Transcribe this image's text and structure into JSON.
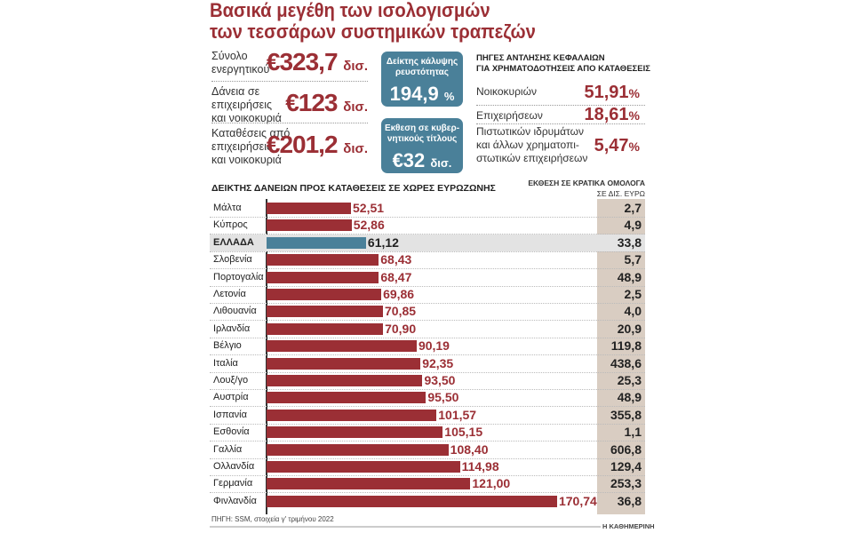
{
  "title_line1": "Βασικά μεγέθη των ισολογισμών",
  "title_line2": "των τεσσάρων συστημικών τραπεζών",
  "summary": [
    {
      "label": [
        "Σύνολο",
        "ενεργητικού"
      ],
      "value": "€323,7",
      "unit": "δισ."
    },
    {
      "label": [
        "Δάνεια σε",
        "επιχειρήσεις",
        "και νοικοκυριά"
      ],
      "value": "€123",
      "unit": "δισ."
    },
    {
      "label": [
        "Καταθέσεις από",
        "επιχειρήσεις",
        "και νοικοκυριά"
      ],
      "value": "€201,2",
      "unit": "δισ."
    }
  ],
  "boxes": [
    {
      "title": [
        "Δείκτης κάλυψης",
        "ρευστότητας"
      ],
      "value": "194,9",
      "unit": "%"
    },
    {
      "title": [
        "Εκθεση σε κυβερ-",
        "νητικούς τίτλους"
      ],
      "value": "€32",
      "unit": "δισ."
    }
  ],
  "sources": {
    "header": [
      "ΠΗΓΕΣ ΑΝΤΛΗΣΗΣ ΚΕΦΑΛΑΙΩΝ",
      "ΓΙΑ ΧΡΗΜΑΤΟΔΟΤΗΣΕΙΣ ΑΠΟ ΚΑΤΑΘΕΣΕΙΣ"
    ],
    "items": [
      {
        "label": [
          "Νοικοκυριών"
        ],
        "value": "51,91",
        "unit": "%"
      },
      {
        "label": [
          "Επιχειρήσεων"
        ],
        "value": "18,61",
        "unit": "%"
      },
      {
        "label": [
          "Πιστωτικών ιδρυμάτων",
          "και άλλων χρηματοπι-",
          "στωτικών επιχειρήσεων"
        ],
        "value": "5,47",
        "unit": "%"
      }
    ]
  },
  "colors": {
    "accent": "#9b2f35",
    "highlight": "#4a8099",
    "exposure_bg": "#d9cdc2"
  },
  "chart_data": {
    "type": "bar",
    "orientation": "horizontal",
    "title": "ΔΕΙΚΤΗΣ ΔΑΝΕΙΩΝ ΠΡΟΣ ΚΑΤΑΘΕΣΕΙΣ ΣΕ ΧΩΡΕΣ ΕΥΡΩΖΩΝΗΣ",
    "exposure_header": [
      "ΕΚΘΕΣΗ ΣΕ ΚΡΑΤΙΚΑ ΟΜΟΛΟΓΑ",
      "ΣΕ ΔΙΣ. ΕΥΡΩ"
    ],
    "highlight": "ΕΛΛΑΔΑ",
    "categories": [
      "Μάλτα",
      "Κύπρος",
      "ΕΛΛΑΔΑ",
      "Σλοβενία",
      "Πορτογαλία",
      "Λετονία",
      "Λιθουανία",
      "Ιρλανδία",
      "Βέλγιο",
      "Ιταλία",
      "Λουξ/γο",
      "Αυστρία",
      "Ισπανία",
      "Εσθονία",
      "Γαλλία",
      "Ολλανδία",
      "Γερμανία",
      "Φινλανδία"
    ],
    "values": [
      52.51,
      52.86,
      61.12,
      68.43,
      68.47,
      69.86,
      70.85,
      70.9,
      90.19,
      92.35,
      93.5,
      95.5,
      101.57,
      105.15,
      108.4,
      114.98,
      121.0,
      170.74
    ],
    "value_labels": [
      "52,51",
      "52,86",
      "61,12",
      "68,43",
      "68,47",
      "69,86",
      "70,85",
      "70,90",
      "90,19",
      "92,35",
      "93,50",
      "95,50",
      "101,57",
      "105,15",
      "108,40",
      "114,98",
      "121,00",
      "170,74"
    ],
    "exposure": [
      "2,7",
      "4,9",
      "33,8",
      "5,7",
      "48,9",
      "2,5",
      "4,0",
      "20,9",
      "119,8",
      "438,6",
      "25,3",
      "48,9",
      "355,8",
      "1,1",
      "606,8",
      "129,4",
      "253,3",
      "36,8"
    ]
  },
  "footer": {
    "source": "ΠΗΓΗ: SSM, στοιχεία γ' τριμήνου 2022",
    "credit": "Η ΚΑΘΗΜΕΡΙΝΗ"
  }
}
